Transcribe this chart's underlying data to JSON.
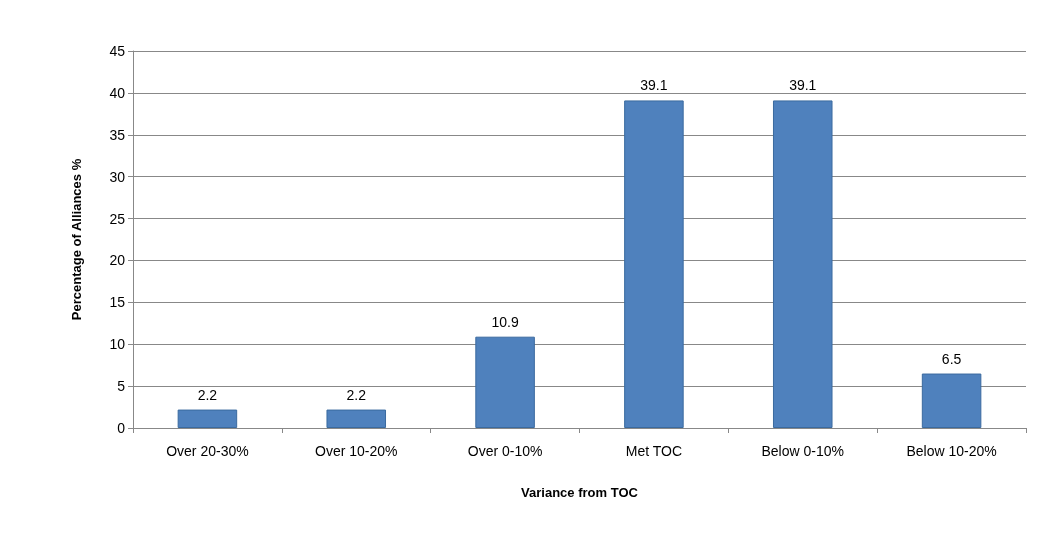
{
  "chart_data": {
    "type": "bar",
    "xlabel": "Variance from TOC",
    "ylabel": "Percentage of Alliances %",
    "categories": [
      "Over 20-30%",
      "Over 10-20%",
      "Over 0-10%",
      "Met TOC",
      "Below 0-10%",
      "Below 10-20%"
    ],
    "values": [
      2.2,
      2.2,
      10.9,
      39.1,
      39.1,
      6.5
    ],
    "color": "#4f81bd",
    "ylim": [
      0,
      45
    ],
    "yticks": [
      0,
      5,
      10,
      15,
      20,
      25,
      30,
      35,
      40,
      45
    ],
    "grid": "y",
    "data_labels": true
  }
}
